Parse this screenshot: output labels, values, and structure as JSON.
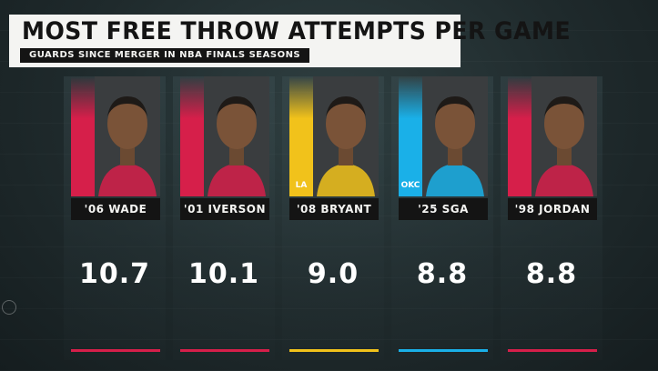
{
  "title": "MOST FREE THROW ATTEMPTS PER GAME",
  "subtitle": "GUARDS SINCE MERGER IN NBA FINALS SEASONS",
  "chart_data": {
    "type": "table",
    "categories": [
      "'06 WADE",
      "'01 IVERSON",
      "'08 BRYANT",
      "'25 SGA",
      "'98 JORDAN"
    ],
    "values": [
      "10.7",
      "10.1",
      "9.0",
      "8.8",
      "8.8"
    ],
    "team_colors": [
      "#d61f4a",
      "#d61f4a",
      "#f1c21b",
      "#1ab0e8",
      "#d61f4a"
    ],
    "team_logos": [
      "heat-logo",
      "76ers-logo",
      "lakers-logo",
      "thunder-logo",
      "bulls-logo"
    ]
  },
  "logo_text": [
    "",
    "",
    "LA",
    "OKC",
    ""
  ]
}
